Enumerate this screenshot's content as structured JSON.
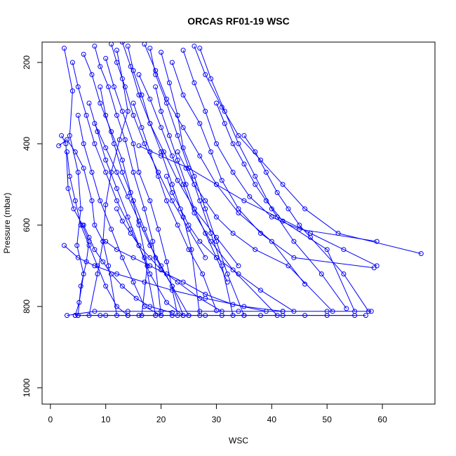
{
  "chart_data": {
    "type": "line",
    "title": "ORCAS RF01-19 WSC",
    "xlabel": "WSC",
    "ylabel": "Pressure (mbar)",
    "xlim": [
      -1.5,
      69.5
    ],
    "ylim": [
      1040,
      150
    ],
    "y_reversed": true,
    "x_ticks": [
      0,
      10,
      20,
      30,
      40,
      50,
      60
    ],
    "y_ticks": [
      200,
      400,
      600,
      800,
      1000
    ],
    "x_tick_labels": [
      "0",
      "10",
      "20",
      "30",
      "40",
      "50",
      "60"
    ],
    "y_tick_labels": [
      "200",
      "400",
      "600",
      "800",
      "1000"
    ],
    "grid": false,
    "legend": "none",
    "series_color": "#0000ff",
    "marker": "open-circle",
    "series": [
      {
        "x": [
          2.5,
          4,
          3.5,
          5,
          5.5,
          4.8,
          6,
          5.2,
          4.5
        ],
        "y": [
          165,
          270,
          380,
          470,
          560,
          650,
          720,
          790,
          822
        ]
      },
      {
        "x": [
          2,
          2.8,
          3.2,
          4.2,
          5.8,
          7,
          6.5,
          5.5,
          5
        ],
        "y": [
          380,
          400,
          510,
          560,
          600,
          640,
          690,
          750,
          822
        ]
      },
      {
        "x": [
          1.5,
          3,
          4.5,
          6,
          7.5,
          8,
          9.5,
          10.5,
          12
        ],
        "y": [
          405,
          390,
          420,
          460,
          540,
          600,
          640,
          700,
          822
        ]
      },
      {
        "x": [
          8,
          9,
          10.5,
          12,
          13.5,
          15,
          17,
          18.5,
          20
        ],
        "y": [
          160,
          210,
          260,
          330,
          390,
          470,
          560,
          640,
          822
        ]
      },
      {
        "x": [
          6,
          7.5,
          9,
          11,
          13,
          14.5,
          16,
          17.5,
          16.5
        ],
        "y": [
          180,
          230,
          300,
          370,
          440,
          520,
          600,
          700,
          822
        ]
      },
      {
        "x": [
          14,
          15,
          16.5,
          18,
          20,
          22,
          24,
          25.5,
          27
        ],
        "y": [
          160,
          220,
          280,
          350,
          420,
          500,
          580,
          660,
          822
        ]
      },
      {
        "x": [
          10,
          11.5,
          13,
          15,
          16,
          18,
          19.5,
          21,
          23
        ],
        "y": [
          190,
          260,
          320,
          400,
          470,
          540,
          610,
          690,
          822
        ]
      },
      {
        "x": [
          18,
          19,
          21,
          23,
          25,
          27,
          29,
          31,
          33
        ],
        "y": [
          165,
          230,
          300,
          380,
          460,
          540,
          620,
          700,
          822
        ]
      },
      {
        "x": [
          12,
          13,
          14,
          12.5,
          11,
          10,
          9.5,
          8.5,
          7
        ],
        "y": [
          170,
          240,
          320,
          390,
          470,
          550,
          640,
          720,
          822
        ]
      },
      {
        "x": [
          20,
          21.5,
          23,
          24,
          26,
          28,
          30,
          32,
          35
        ],
        "y": [
          175,
          250,
          330,
          410,
          480,
          560,
          640,
          720,
          822
        ]
      },
      {
        "x": [
          26,
          28,
          31,
          34,
          38,
          42,
          46,
          52,
          67
        ],
        "y": [
          160,
          230,
          310,
          380,
          440,
          500,
          560,
          620,
          670
        ]
      },
      {
        "x": [
          24,
          26,
          28,
          30,
          33,
          36,
          40,
          45,
          59
        ],
        "y": [
          170,
          250,
          320,
          400,
          470,
          530,
          580,
          610,
          640
        ]
      },
      {
        "x": [
          22,
          24,
          27,
          29,
          31,
          34,
          38,
          44,
          58.5
        ],
        "y": [
          200,
          280,
          350,
          420,
          490,
          560,
          620,
          680,
          705
        ]
      },
      {
        "x": [
          16,
          18,
          20,
          22,
          24,
          26,
          29,
          33,
          41
        ],
        "y": [
          230,
          290,
          360,
          430,
          500,
          570,
          640,
          710,
          822
        ]
      },
      {
        "x": [
          9,
          10,
          11.5,
          13,
          15,
          17,
          19,
          22,
          25
        ],
        "y": [
          260,
          330,
          400,
          470,
          540,
          610,
          680,
          750,
          822
        ]
      },
      {
        "x": [
          7,
          8.5,
          10,
          12,
          14,
          16,
          18,
          21,
          24
        ],
        "y": [
          300,
          370,
          440,
          510,
          580,
          650,
          720,
          790,
          822
        ]
      },
      {
        "x": [
          5,
          6,
          7.5,
          9,
          11,
          13,
          15,
          17,
          20
        ],
        "y": [
          330,
          400,
          470,
          540,
          610,
          680,
          740,
          800,
          822
        ]
      },
      {
        "x": [
          27,
          29,
          31.5,
          34,
          37,
          40,
          44,
          49,
          53.5
        ],
        "y": [
          165,
          240,
          320,
          400,
          480,
          560,
          640,
          720,
          805
        ]
      },
      {
        "x": [
          17,
          19,
          21,
          24,
          27,
          30,
          34,
          40,
          46
        ],
        "y": [
          155,
          220,
          290,
          360,
          430,
          500,
          570,
          640,
          745
        ]
      },
      {
        "x": [
          13,
          14.5,
          16,
          18,
          20.5,
          23,
          26,
          30,
          34
        ],
        "y": [
          150,
          210,
          280,
          350,
          420,
          490,
          560,
          630,
          700
        ]
      },
      {
        "x": [
          11,
          12,
          13.5,
          15,
          17,
          19.5,
          22,
          25,
          28
        ],
        "y": [
          155,
          200,
          260,
          330,
          400,
          470,
          540,
          610,
          680
        ]
      },
      {
        "x": [
          4,
          5,
          6.5,
          8,
          10,
          12,
          14.5,
          17,
          19
        ],
        "y": [
          200,
          260,
          330,
          400,
          470,
          540,
          610,
          680,
          822
        ]
      },
      {
        "x": [
          19,
          20,
          21.5,
          23,
          24.5,
          26,
          28,
          30,
          32
        ],
        "y": [
          260,
          320,
          380,
          440,
          500,
          560,
          620,
          680,
          740
        ]
      },
      {
        "x": [
          15,
          16.5,
          18,
          19.5,
          21,
          23,
          25,
          27.5,
          30
        ],
        "y": [
          300,
          360,
          420,
          480,
          540,
          600,
          660,
          720,
          810
        ]
      },
      {
        "x": [
          8,
          10,
          12,
          14,
          16,
          18,
          20,
          22,
          24
        ],
        "y": [
          350,
          410,
          470,
          530,
          590,
          650,
          700,
          750,
          822
        ]
      },
      {
        "x": [
          3,
          3.5,
          4.5,
          5.5,
          7,
          8.5,
          10,
          12,
          14
        ],
        "y": [
          420,
          480,
          540,
          600,
          650,
          700,
          750,
          800,
          822
        ]
      },
      {
        "x": [
          35,
          37,
          39,
          41,
          43,
          45,
          47,
          53,
          57.5
        ],
        "y": [
          380,
          420,
          470,
          520,
          560,
          600,
          630,
          720,
          812
        ]
      },
      {
        "x": [
          30,
          31.5,
          33,
          35,
          37,
          39,
          42,
          50,
          55
        ],
        "y": [
          300,
          350,
          400,
          450,
          500,
          540,
          590,
          660,
          812
        ]
      },
      {
        "x": [
          23,
          24.5,
          26,
          28,
          30,
          33,
          37,
          43,
          51
        ],
        "y": [
          420,
          460,
          500,
          540,
          580,
          620,
          660,
          700,
          812
        ]
      },
      {
        "x": [
          21,
          22,
          23.5,
          25,
          27,
          30,
          34,
          38,
          44
        ],
        "y": [
          480,
          520,
          560,
          600,
          640,
          680,
          720,
          760,
          812
        ]
      },
      {
        "x": [
          12,
          13,
          14.5,
          16,
          18,
          20,
          23,
          27,
          31
        ],
        "y": [
          560,
          590,
          620,
          650,
          680,
          710,
          740,
          780,
          812
        ]
      },
      {
        "x": [
          6,
          7,
          8,
          9.5,
          11,
          13,
          15.5,
          18,
          22
        ],
        "y": [
          600,
          630,
          660,
          690,
          720,
          750,
          780,
          800,
          815
        ]
      },
      {
        "x": [
          10,
          12,
          15,
          18,
          21,
          24,
          28,
          33,
          39
        ],
        "y": [
          640,
          660,
          680,
          700,
          720,
          740,
          770,
          795,
          812
        ]
      },
      {
        "x": [
          2.5,
          5,
          8,
          12,
          17,
          22,
          28,
          35,
          42
        ],
        "y": [
          650,
          680,
          700,
          720,
          740,
          760,
          780,
          800,
          812
        ]
      },
      {
        "x": [
          4.5,
          9,
          14,
          19,
          25,
          31,
          38,
          46,
          55
        ],
        "y": [
          822,
          822,
          822,
          822,
          822,
          822,
          822,
          822,
          822
        ]
      },
      {
        "x": [
          5,
          10,
          16,
          22,
          28,
          35,
          42,
          50,
          57
        ],
        "y": [
          822,
          822,
          822,
          822,
          822,
          822,
          822,
          822,
          822
        ]
      },
      {
        "x": [
          3,
          8,
          14,
          20,
          27,
          34,
          42,
          50,
          58
        ],
        "y": [
          822,
          812,
          812,
          812,
          812,
          812,
          812,
          812,
          812
        ]
      },
      {
        "x": [
          16,
          20,
          25,
          30,
          35,
          41,
          47,
          53,
          59
        ],
        "y": [
          405,
          430,
          460,
          500,
          540,
          580,
          620,
          660,
          700
        ]
      }
    ]
  }
}
